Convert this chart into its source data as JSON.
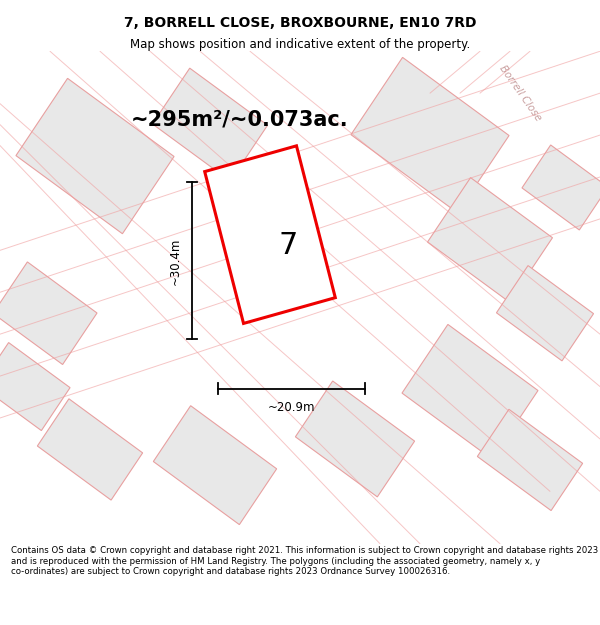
{
  "title": "7, BORRELL CLOSE, BROXBOURNE, EN10 7RD",
  "subtitle": "Map shows position and indicative extent of the property.",
  "area_text": "~295m²/~0.073ac.",
  "plot_number": "7",
  "dim_width": "~20.9m",
  "dim_height": "~30.4m",
  "footer": "Contains OS data © Crown copyright and database right 2021. This information is subject to Crown copyright and database rights 2023 and is reproduced with the permission of HM Land Registry. The polygons (including the associated geometry, namely x, y co-ordinates) are subject to Crown copyright and database rights 2023 Ordnance Survey 100026316.",
  "bg_color": "#ffffff",
  "plot_color": "#ee0000",
  "neighbor_fill": "#e8e8e8",
  "neighbor_edge": "#e8a0a0",
  "road_line_color": "#f0a0a0",
  "road_label": "Borrell Close",
  "road_label_color": "#c09090",
  "dim_color": "#000000",
  "title_fontsize": 10,
  "subtitle_fontsize": 8.5,
  "area_fontsize": 15,
  "plot_num_fontsize": 22,
  "dim_fontsize": 8.5,
  "footer_fontsize": 6.2
}
